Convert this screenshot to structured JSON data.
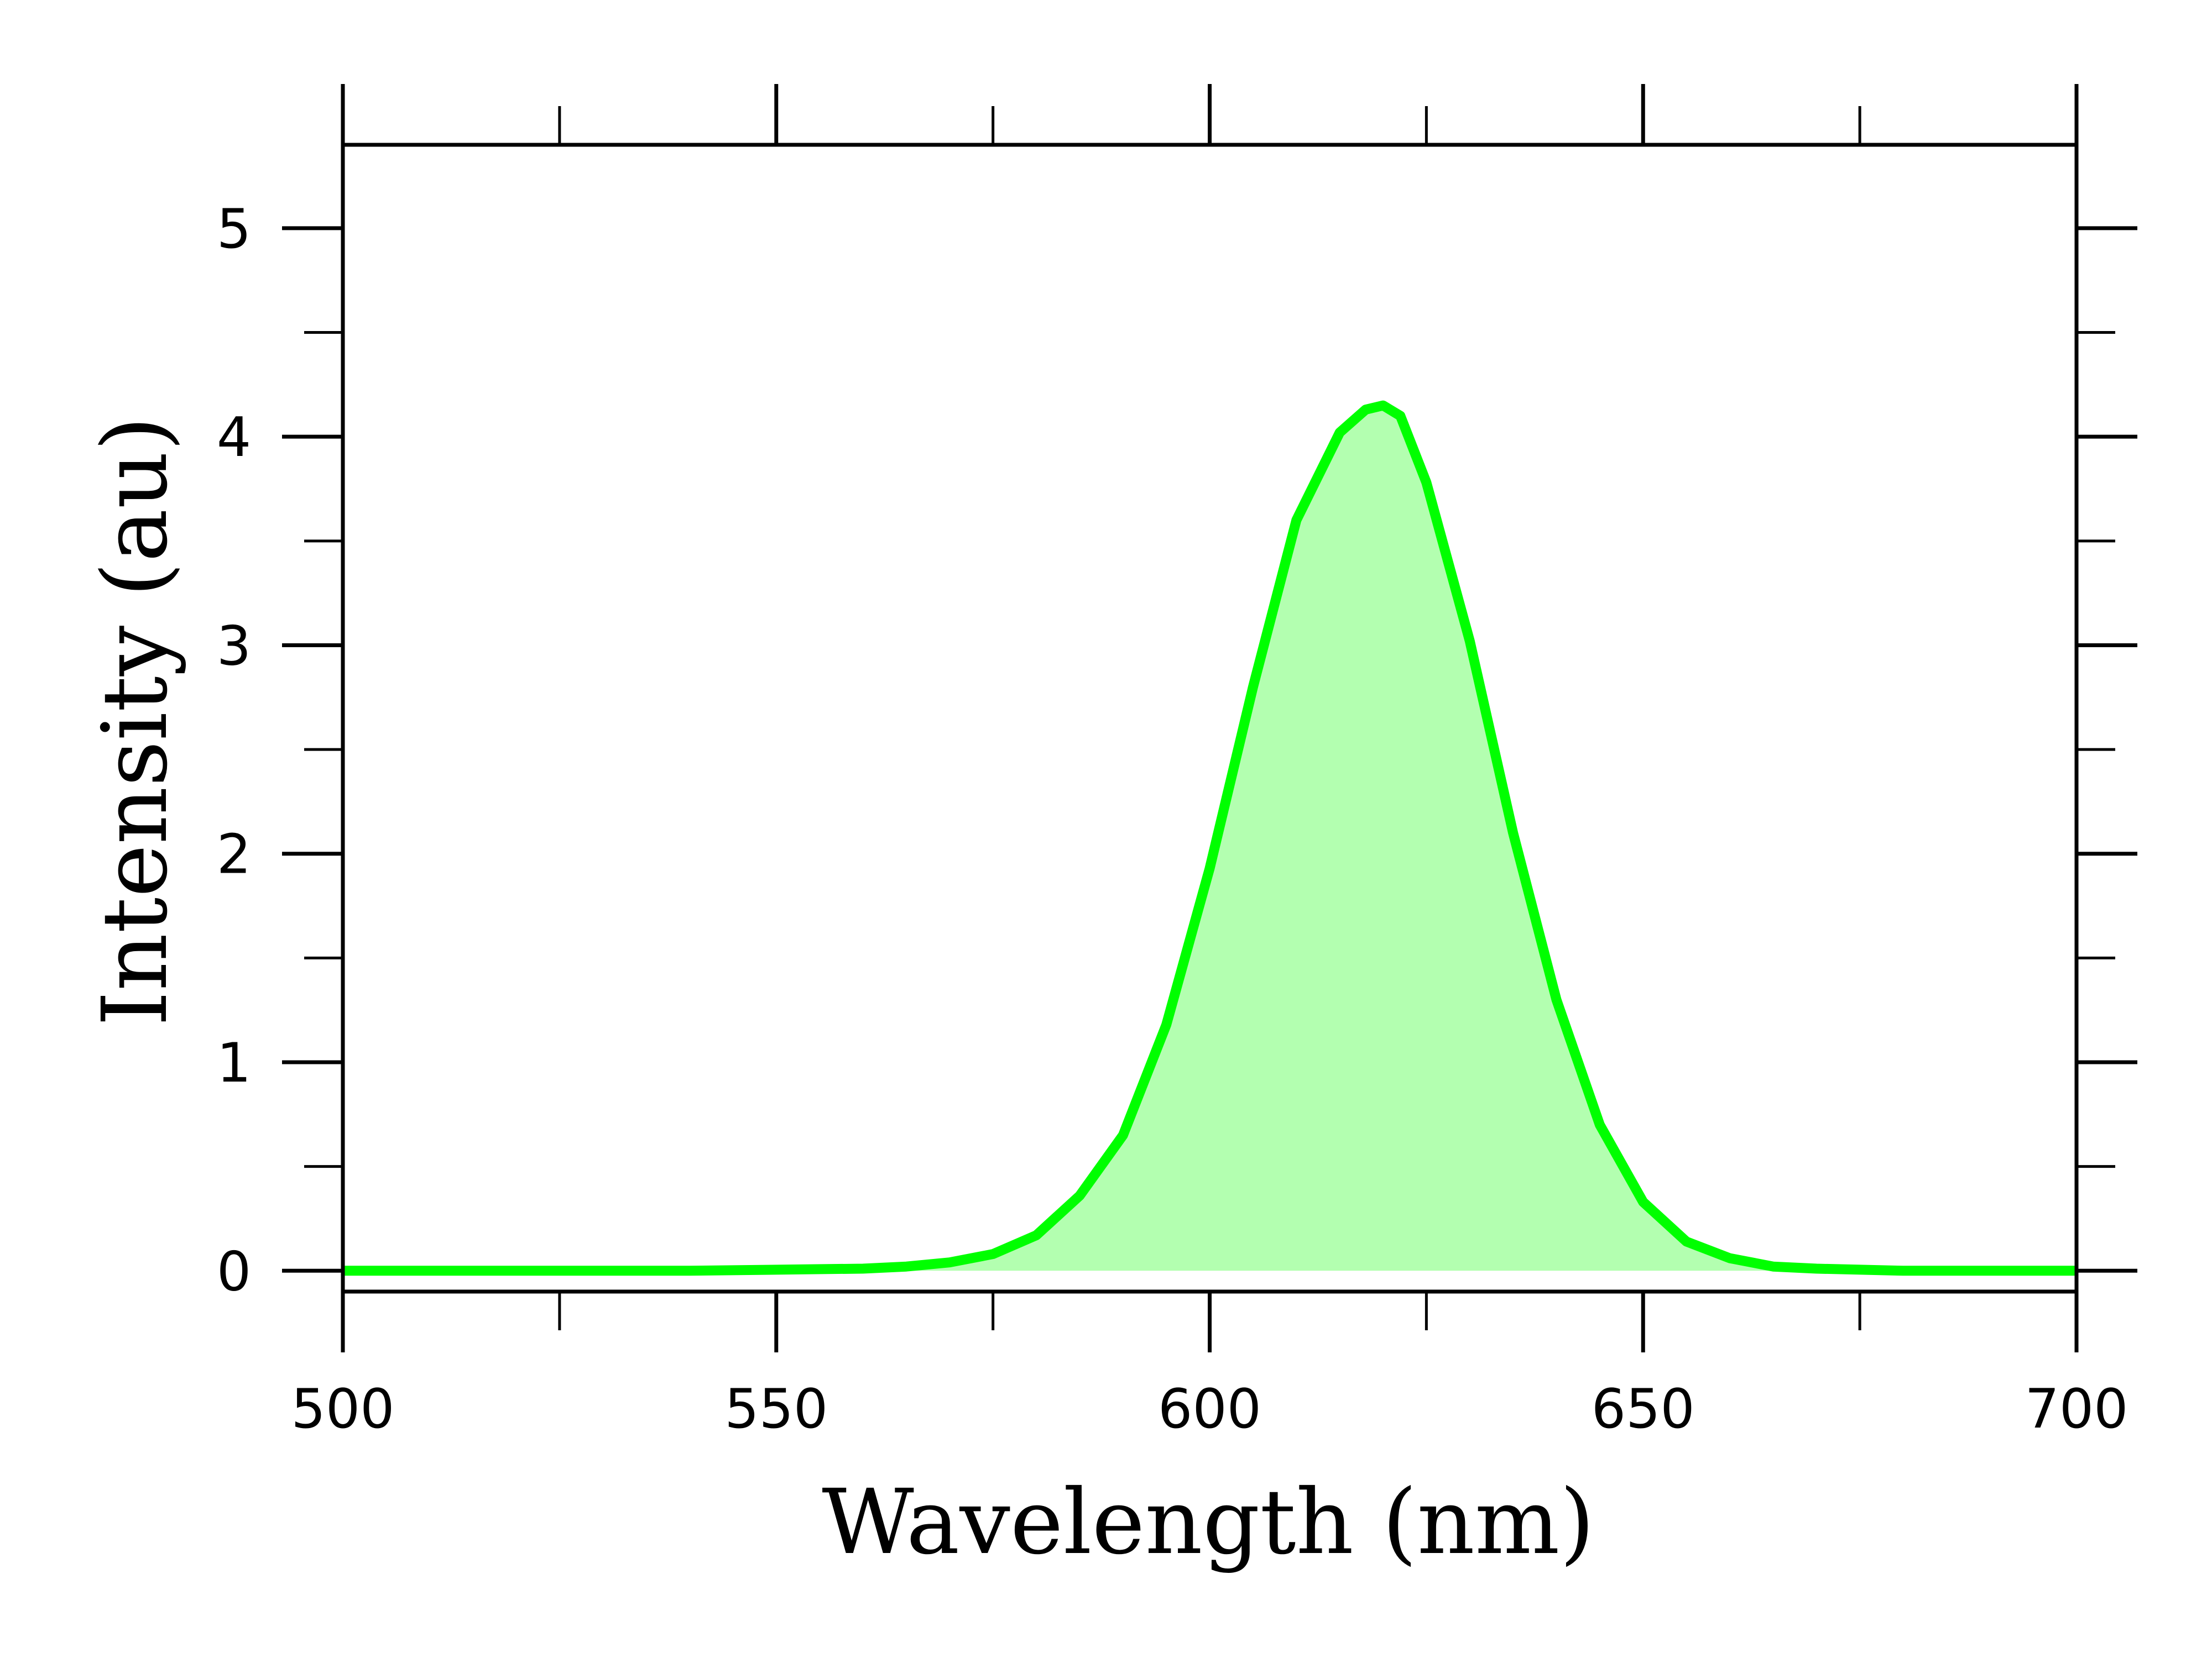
{
  "chart_data": {
    "type": "area",
    "title": "",
    "xlabel": "Wavelength (nm)",
    "ylabel": "Intensity (au)",
    "xlim": [
      500,
      700
    ],
    "ylim": [
      -0.1,
      5.4
    ],
    "x_ticks": [
      500,
      550,
      600,
      650,
      700
    ],
    "x_tick_labels": [
      "500",
      "550",
      "600",
      "650",
      "700"
    ],
    "y_ticks": [
      0,
      1,
      2,
      3,
      4,
      5
    ],
    "y_tick_labels": [
      "0",
      "1",
      "2",
      "3",
      "4",
      "5"
    ],
    "x_minor_ticks": [
      525,
      575,
      625,
      675
    ],
    "y_minor_ticks": [
      0.5,
      1.5,
      2.5,
      3.5,
      4.5
    ],
    "grid": false,
    "legend": "none",
    "series": [
      {
        "color": "#00ff00",
        "fill_color": "#b3ffb0",
        "x": [
          500,
          540,
          560,
          565,
          570,
          575,
          580,
          585,
          590,
          595,
          600,
          605,
          610,
          615,
          618,
          620,
          622,
          625,
          630,
          635,
          640,
          645,
          650,
          655,
          660,
          665,
          670,
          680,
          700
        ],
        "y": [
          0,
          0,
          0.01,
          0.02,
          0.04,
          0.08,
          0.17,
          0.36,
          0.65,
          1.18,
          1.93,
          2.8,
          3.6,
          4.02,
          4.13,
          4.15,
          4.1,
          3.78,
          3.02,
          2.1,
          1.3,
          0.7,
          0.33,
          0.14,
          0.06,
          0.02,
          0.01,
          0,
          0
        ]
      }
    ]
  }
}
